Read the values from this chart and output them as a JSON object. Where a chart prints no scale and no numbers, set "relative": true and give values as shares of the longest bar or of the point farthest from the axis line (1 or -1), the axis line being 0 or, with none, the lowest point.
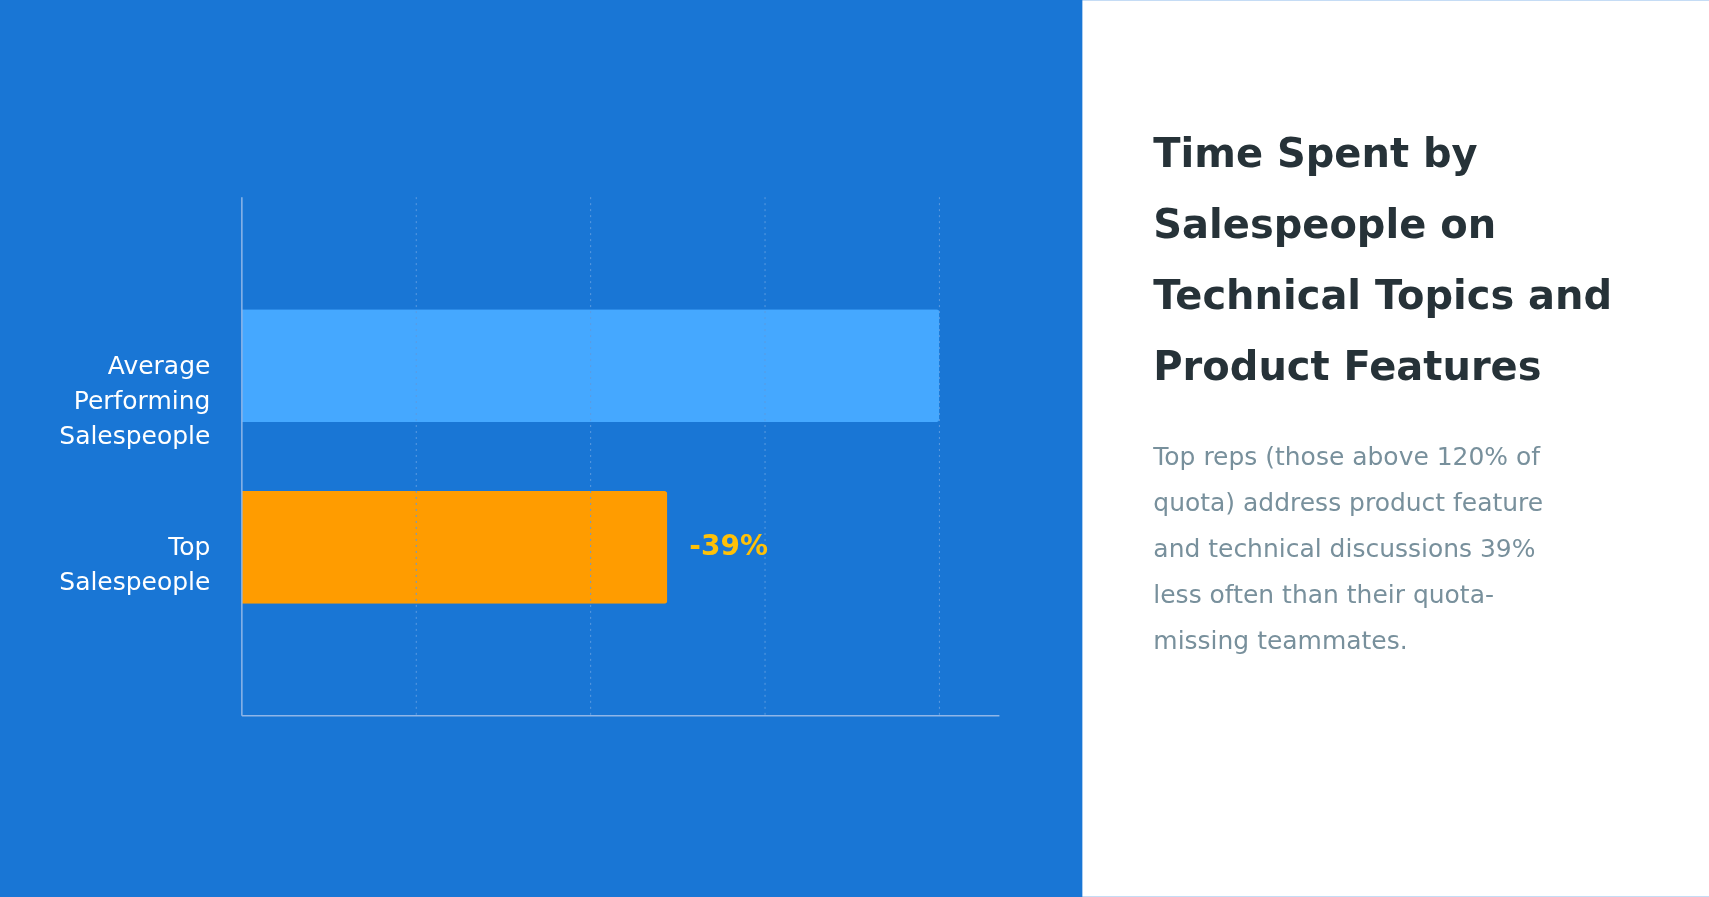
{
  "chart_data": {
    "type": "bar",
    "orientation": "horizontal",
    "relative": true,
    "title": "Time Spent by Salespeople on Technical Topics and Product Features",
    "categories": [
      "Average Performing Salespeople",
      "Top Salespeople"
    ],
    "values": [
      1,
      0.61
    ],
    "colors": [
      "#45a8ff",
      "#ff9c00"
    ],
    "ref_lines": [
      {
        "axis": "x",
        "value": 0.25,
        "color": "#5b9be0",
        "line_style": "dotted"
      },
      {
        "axis": "x",
        "value": 0.5,
        "color": "#5b9be0",
        "line_style": "dotted"
      },
      {
        "axis": "x",
        "value": 0.75,
        "color": "#5b9be0",
        "line_style": "dotted"
      },
      {
        "axis": "x",
        "value": 1,
        "color": "#5b9be0",
        "line_style": "dotted"
      }
    ],
    "annotations": [
      {
        "text": "-39%",
        "x": 0.61,
        "y": "Top Salespeople"
      },
      "Top reps (those above 120% of quota) address product feature and technical discussions 39% less often than their quota-missing teammates."
    ]
  }
}
